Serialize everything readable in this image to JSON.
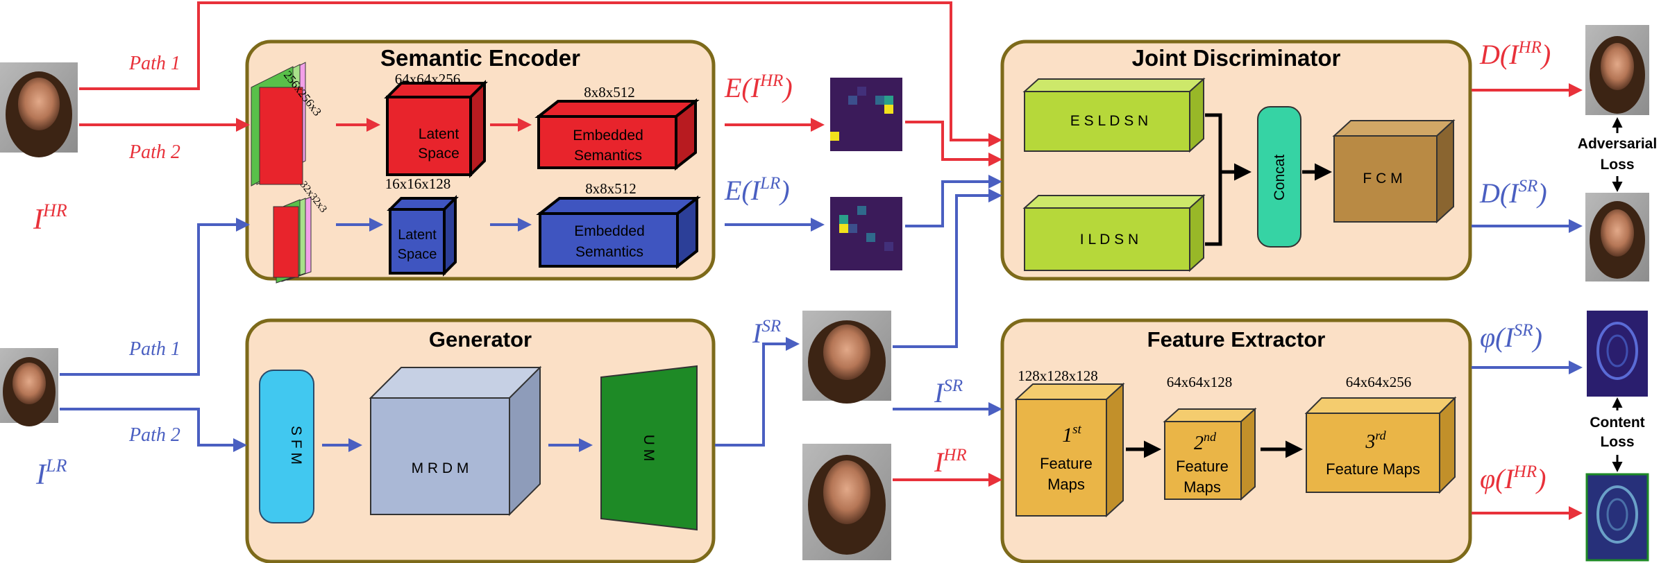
{
  "colors": {
    "red": "#e8313a",
    "blue": "#4a5fc1",
    "panel_fill": "#fbe0c6",
    "panel_border": "#7d6a1a",
    "red_block": "#e8242c",
    "blue_block": "#3f55c0",
    "green_block": "#b6d83a",
    "teal_block": "#36d3a4",
    "brown_block": "#b98a44",
    "yellow_block": "#eab547",
    "cyan_block": "#41c8f0",
    "gray_block": "#aab8d6",
    "dark_green_block": "#1e8a26"
  },
  "panels": {
    "semantic_encoder": {
      "title": "Semantic Encoder",
      "input_hr_dims": "256x256x3",
      "input_lr_dims": "32x32x3",
      "latent_hr_dims": "64x64x256",
      "latent_hr_label_1": "Latent",
      "latent_hr_label_2": "Space",
      "latent_lr_dims": "16x16x128",
      "latent_lr_label_1": "Latent",
      "latent_lr_label_2": "Space",
      "embedded_hr_dims": "8x8x512",
      "embedded_hr_label_1": "Embedded",
      "embedded_hr_label_2": "Semantics",
      "embedded_lr_dims": "8x8x512",
      "embedded_lr_label_1": "Embedded",
      "embedded_lr_label_2": "Semantics"
    },
    "generator": {
      "title": "Generator",
      "sfm": "S F M",
      "mrdm": "M R D M",
      "um": "U M"
    },
    "joint_discriminator": {
      "title": "Joint Discriminator",
      "esldsn": "E S L D S N",
      "ildsn": "I L D S N",
      "concat": "Concat",
      "fcm": "F C M"
    },
    "feature_extractor": {
      "title": "Feature Extractor",
      "f1_dims": "128x128x128",
      "f1_sup": "st",
      "f1_num": "1",
      "f1_label_1": "Feature",
      "f1_label_2": "Maps",
      "f2_dims": "64x64x128",
      "f2_num": "2",
      "f2_sup": "nd",
      "f2_label_1": "Feature",
      "f2_label_2": "Maps",
      "f3_dims": "64x64x256",
      "f3_num": "3",
      "f3_sup": "rd",
      "f3_label": "Feature Maps"
    }
  },
  "labels": {
    "path1_hr": "Path 1",
    "path2_hr": "Path 2",
    "path1_lr": "Path 1",
    "path2_lr": "Path 2",
    "i_hr": {
      "base": "I",
      "sup": "HR"
    },
    "i_lr": {
      "base": "I",
      "sup": "LR"
    },
    "i_sr_top": {
      "base": "I",
      "sup": "SR"
    },
    "i_sr_fe": {
      "base": "I",
      "sup": "SR"
    },
    "i_hr_fe": {
      "base": "I",
      "sup": "HR"
    },
    "e_hr": {
      "pre": "E(I",
      "sup": "HR",
      "post": ")"
    },
    "e_lr": {
      "pre": "E(I",
      "sup": "LR",
      "post": ")"
    },
    "d_hr": {
      "pre": "D(I",
      "sup": "HR",
      "post": ")"
    },
    "d_sr": {
      "pre": "D(I",
      "sup": "SR",
      "post": ")"
    },
    "phi_sr": {
      "pre": "φ(I",
      "sup": "SR",
      "post": ")"
    },
    "phi_hr": {
      "pre": "φ(I",
      "sup": "HR",
      "post": ")"
    },
    "adversarial_1": "Adversarial",
    "adversarial_2": "Loss",
    "content_1": "Content",
    "content_2": "Loss"
  }
}
